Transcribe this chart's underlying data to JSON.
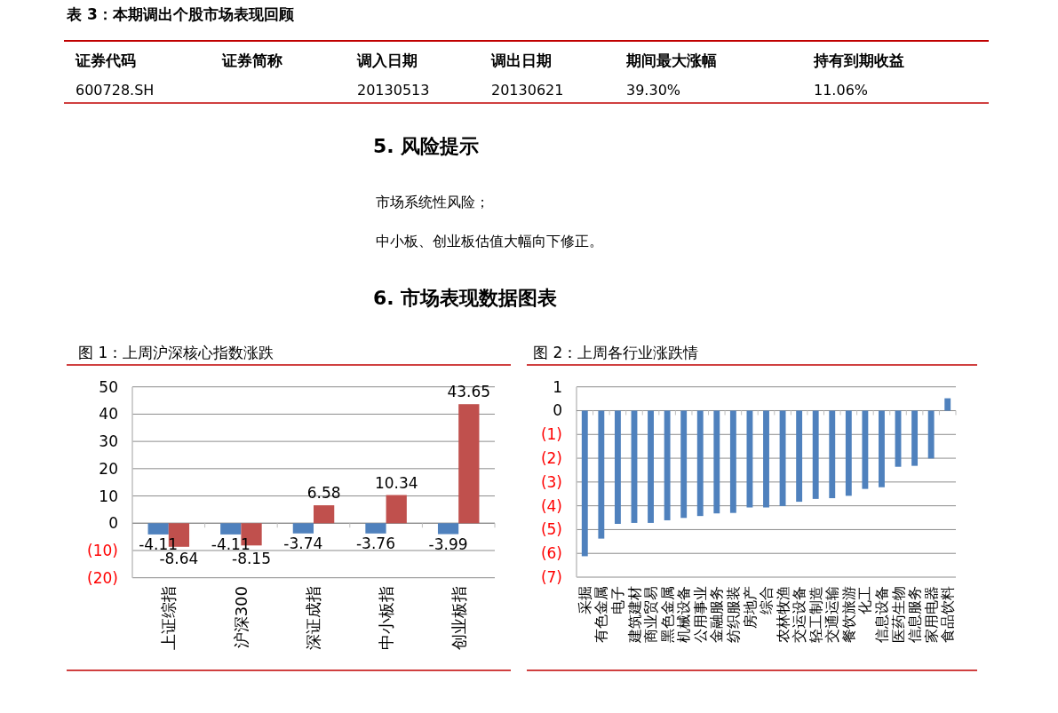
{
  "chart_data": [
    {
      "type": "other",
      "title": "表 3：本期调出个股市场表现回顾",
      "annotations": [
        "证券代码",
        "证券简称",
        "调入日期",
        "调出日期",
        "期间最大涨幅",
        "持有到期收益",
        "600728.SH",
        "20130513",
        "20130621",
        "39.30%",
        "11.06%"
      ]
    },
    {
      "type": "other",
      "title": "5. 风险提示",
      "annotations": [
        "市场系统性风险；",
        "中小板、创业板估值大幅向下修正。"
      ]
    },
    {
      "type": "other",
      "title": "6. 市场表现数据图表"
    },
    {
      "type": "bar",
      "title": "图 1：上周沪深核心指数涨跌",
      "categories": [
        "上证综指",
        "沪深300",
        "深证成指",
        "中小板指",
        "创业板指"
      ],
      "series": [
        {
          "color": "#4f81bd",
          "values": [
            -4.11,
            -4.11,
            -3.74,
            -3.76,
            -3.99
          ]
        },
        {
          "color": "#c0504d",
          "values": [
            -8.64,
            -8.15,
            6.58,
            10.34,
            43.65
          ]
        }
      ],
      "data_labels": true,
      "ylim": [
        -20,
        50
      ],
      "yticks": [
        {
          "value": -20,
          "label": "(20)"
        },
        {
          "value": -10,
          "label": "(10)"
        },
        0,
        10,
        20,
        30,
        40,
        50
      ],
      "grid": "y"
    },
    {
      "type": "bar",
      "title": "图 2：上周各行业涨跌情",
      "categories": [
        "采掘",
        "有色金属",
        "电子",
        "建筑建材",
        "商业贸易",
        "黑色金属",
        "机械设备",
        "公用事业",
        "金融服务",
        "纺织服装",
        "房地产",
        "综合",
        "农林牧渔",
        "交运设备",
        "轻工制造",
        "交通运输",
        "餐饮旅游",
        "化工",
        "信息设备",
        "医药生物",
        "信息服务",
        "家用电器",
        "食品饮料"
      ],
      "values": [
        -6.12,
        -5.38,
        -4.76,
        -4.72,
        -4.72,
        -4.61,
        -4.51,
        -4.43,
        -4.32,
        -4.3,
        -4.07,
        -4.07,
        -4.01,
        -3.83,
        -3.71,
        -3.68,
        -3.58,
        -3.29,
        -3.22,
        -2.36,
        -2.32,
        -2.01,
        0.52
      ],
      "color": "#4f81bd",
      "ylim": [
        -7,
        1
      ],
      "yticks": [
        {
          "value": -7,
          "label": "(7)"
        },
        {
          "value": -6,
          "label": "(6)"
        },
        {
          "value": -5,
          "label": "(5)"
        },
        {
          "value": -4,
          "label": "(4)"
        },
        {
          "value": -3,
          "label": "(3)"
        },
        {
          "value": -2,
          "label": "(2)"
        },
        {
          "value": -1,
          "label": "(1)"
        },
        0,
        1
      ],
      "grid": "y"
    }
  ]
}
